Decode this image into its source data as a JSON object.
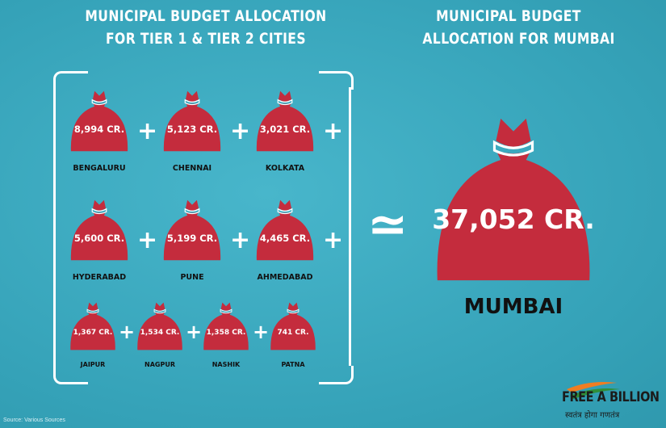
{
  "headings": {
    "left": [
      "MUNICIPAL BUDGET ALLOCATION",
      "FOR TIER 1 & TIER 2 CITIES"
    ],
    "right": [
      "MUNICIPAL BUDGET",
      "ALLOCATION FOR MUMBAI"
    ]
  },
  "cities": [
    {
      "name": "BENGALURU",
      "amount": "8,994 CR."
    },
    {
      "name": "CHENNAI",
      "amount": "5,123 CR."
    },
    {
      "name": "KOLKATA",
      "amount": "3,021 CR."
    },
    {
      "name": "HYDERABAD",
      "amount": "5,600 CR."
    },
    {
      "name": "PUNE",
      "amount": "5,199 CR."
    },
    {
      "name": "AHMEDABAD",
      "amount": "4,465 CR."
    },
    {
      "name": "JAIPUR",
      "amount": "1,367 CR."
    },
    {
      "name": "NAGPUR",
      "amount": "1,534 CR."
    },
    {
      "name": "NASHIK",
      "amount": "1,358 CR."
    },
    {
      "name": "PATNA",
      "amount": "741 CR."
    }
  ],
  "operators": {
    "plus": "+",
    "approx": "≃"
  },
  "mumbai": {
    "name": "MUMBAI",
    "amount": "37,052 CR."
  },
  "source": "Source: Various Sources",
  "logo": {
    "text": "FREE A BILLION",
    "tagline": "स्वतंत्र होगा गणतंत्र"
  },
  "colors": {
    "background": "#3aaac0",
    "bag": "#c42c3d",
    "bag_outline": "#ffffff",
    "text_light": "#ffffff",
    "text_dark": "#111111",
    "logo_saffron": "#f07d21",
    "logo_green": "#2f8f3a"
  },
  "icons": {
    "bag": "money-bag-icon",
    "plus": "plus-sign",
    "approx": "approximately-equal-sign"
  }
}
